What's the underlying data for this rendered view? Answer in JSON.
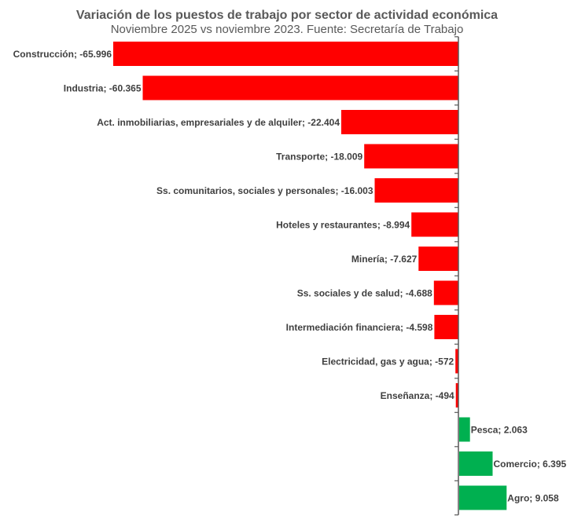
{
  "chart_data": {
    "type": "bar",
    "orientation": "horizontal",
    "title": "Variación de los puestos de trabajo por sector de actividad económica",
    "subtitle": "Noviembre 2025 vs noviembre 2023. Fuente: Secretaría de Trabajo",
    "categories": [
      "Construcción",
      "Industria",
      "Act. inmobiliarias, empresariales y de alquiler",
      "Transporte",
      "Ss. comunitarios, sociales y personales",
      "Hoteles y restaurantes",
      "Minería",
      "Ss. sociales y de salud",
      "Intermediación financiera",
      "Electricidad, gas y agua",
      "Enseñanza",
      "Pesca",
      "Comercio",
      "Agro"
    ],
    "values": [
      -65996,
      -60365,
      -22404,
      -18009,
      -16003,
      -8994,
      -7627,
      -4688,
      -4598,
      -572,
      -494,
      2063,
      6395,
      9058
    ],
    "labels": [
      "Construcción; -65.996",
      "Industria; -60.365",
      "Act. inmobiliarias, empresariales y de alquiler; -22.404",
      "Transporte; -18.009",
      "Ss. comunitarios, sociales y personales; -16.003",
      "Hoteles y restaurantes; -8.994",
      "Minería; -7.627",
      "Ss. sociales y de salud; -4.688",
      "Intermediación financiera; -4.598",
      "Electricidad, gas y agua; -572",
      "Enseñanza; -494",
      "Pesca;  2.063",
      "Comercio;  6.395",
      "Agro;  9.058"
    ],
    "colors": {
      "negative": "#ff0000",
      "positive": "#00b050",
      "axis": "#595959"
    },
    "grid": false,
    "legend": "none"
  }
}
